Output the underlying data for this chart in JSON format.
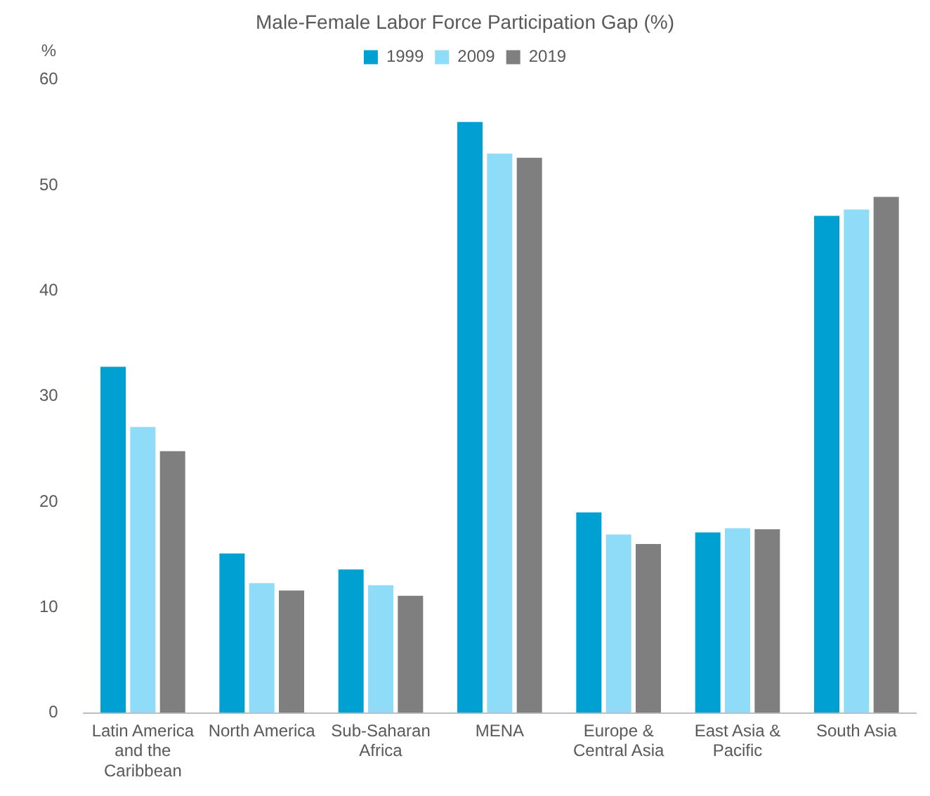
{
  "chart_data": {
    "type": "bar",
    "title": "Male-Female Labor Force Participation Gap (%)",
    "ylabel": "%",
    "categories": [
      "Latin America and the Caribbean",
      "North America",
      "Sub-Saharan Africa",
      "MENA",
      "Europe & Central Asia",
      "East Asia & Pacific",
      "South Asia"
    ],
    "series": [
      {
        "name": "1999",
        "color": "#00a0d2",
        "values": [
          32.8,
          15.1,
          13.6,
          56.0,
          19.0,
          17.1,
          47.1
        ]
      },
      {
        "name": "2009",
        "color": "#8fdcf8",
        "values": [
          27.1,
          12.3,
          12.1,
          53.0,
          16.9,
          17.5,
          47.7
        ]
      },
      {
        "name": "2019",
        "color": "#7f7f7f",
        "values": [
          24.8,
          11.6,
          11.1,
          52.6,
          16.0,
          17.4,
          48.9
        ]
      }
    ],
    "ylim": [
      0,
      60
    ],
    "yticks": [
      0,
      10,
      20,
      30,
      40,
      50,
      60
    ],
    "grid": false,
    "legend": "top"
  }
}
